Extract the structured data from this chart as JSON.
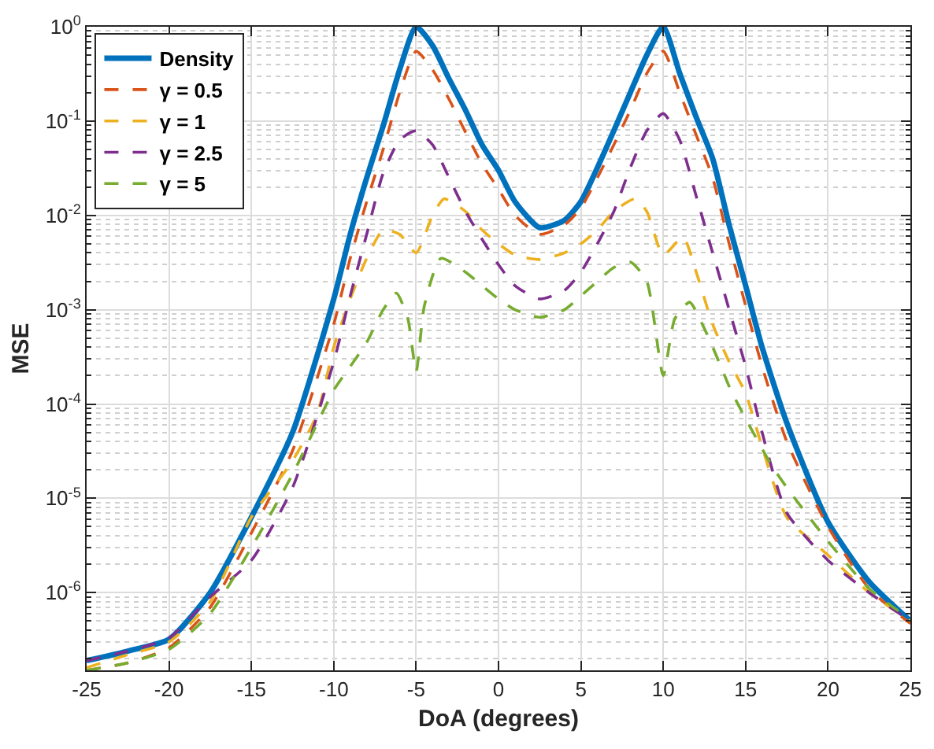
{
  "chart_data": {
    "type": "line",
    "xlabel": "DoA (degrees)",
    "ylabel": "MSE",
    "log": "y",
    "grid": true,
    "legend": "top left",
    "marker": "none",
    "xlim": [
      -25,
      25
    ],
    "xticks": [
      -25,
      -20,
      -15,
      -10,
      -5,
      0,
      5,
      10,
      15,
      20,
      25
    ],
    "ylim": [
      1.5e-07,
      1
    ],
    "yticks": [
      {
        "value": 1e-06,
        "label": "10$^{-6}$"
      },
      {
        "value": 1e-05,
        "label": "10$^{-5}$"
      },
      {
        "value": 0.0001,
        "label": "10$^{-4}$"
      },
      {
        "value": 0.001,
        "label": "10$^{-3}$"
      },
      {
        "value": 0.01,
        "label": "10$^{-2}$"
      },
      {
        "value": 0.1,
        "label": "10$^{-1}$"
      },
      {
        "value": 1,
        "label": "10$^{0}$"
      }
    ],
    "series": [
      {
        "name": "Density",
        "color": "#0072bd",
        "line_style": "solid",
        "x": [
          -25,
          -22.5,
          -20,
          -17.5,
          -15,
          -12.5,
          -10,
          -9,
          -8,
          -7,
          -6,
          -5,
          -4,
          -3,
          -2,
          -1,
          0,
          1,
          2.5,
          4,
          5,
          6,
          7,
          8,
          9,
          10,
          11,
          12,
          13,
          14,
          15,
          16,
          17.5,
          20,
          22.5,
          25
        ],
        "values": [
          1.9e-07,
          2.4e-07,
          3.2e-07,
          1e-06,
          6.3e-06,
          5e-05,
          0.0013,
          0.0063,
          0.025,
          0.089,
          0.35,
          1,
          0.63,
          0.28,
          0.13,
          0.056,
          0.03,
          0.014,
          0.0074,
          0.0089,
          0.014,
          0.032,
          0.079,
          0.2,
          0.5,
          1,
          0.32,
          0.11,
          0.04,
          0.0079,
          0.0018,
          0.0004,
          6.3e-05,
          5.6e-06,
          1.3e-06,
          5e-07
        ]
      },
      {
        "name": "γ = 0.5",
        "color": "#d95319",
        "line_style": "dashed",
        "x": [
          -25,
          -22.5,
          -20,
          -17.5,
          -15,
          -12.5,
          -10,
          -9,
          -8,
          -7,
          -6,
          -5,
          -4,
          -3,
          -2,
          -1,
          0,
          1,
          2.5,
          4,
          5,
          6,
          7,
          8,
          9,
          10,
          11,
          12,
          13,
          14,
          15,
          16,
          17.5,
          20,
          22.5,
          25
        ],
        "values": [
          1.5e-07,
          1.8e-07,
          2.6e-07,
          7e-07,
          4.3e-06,
          3.2e-05,
          0.0007,
          0.0035,
          0.014,
          0.05,
          0.2,
          0.55,
          0.35,
          0.17,
          0.076,
          0.035,
          0.019,
          0.01,
          0.0063,
          0.0079,
          0.012,
          0.025,
          0.056,
          0.13,
          0.32,
          0.55,
          0.2,
          0.071,
          0.025,
          0.005,
          0.0011,
          0.00025,
          4e-05,
          5e-06,
          1.1e-06,
          4.7e-07
        ]
      },
      {
        "name": "γ = 1",
        "color": "#edb120",
        "line_style": "dashed",
        "x": [
          -25,
          -22.5,
          -20,
          -17.5,
          -15,
          -12.5,
          -11,
          -10,
          -9,
          -8,
          -7,
          -6,
          -5,
          -4,
          -3.3,
          -2,
          -1,
          0,
          1,
          2.5,
          4,
          5,
          6,
          7,
          8.3,
          9,
          10,
          11.2,
          12,
          13,
          14,
          15,
          16,
          17.5,
          20,
          22.5,
          25
        ],
        "values": [
          1.6e-07,
          2.2e-07,
          3e-07,
          8e-07,
          6.3e-06,
          2.5e-05,
          7.9e-05,
          0.0004,
          0.0013,
          0.0035,
          0.007,
          0.0063,
          0.004,
          0.01,
          0.015,
          0.011,
          0.007,
          0.005,
          0.0038,
          0.0034,
          0.004,
          0.005,
          0.007,
          0.011,
          0.015,
          0.011,
          0.0038,
          0.0059,
          0.0025,
          0.0007,
          0.00028,
          0.00013,
          3.5e-05,
          6.3e-06,
          2.5e-06,
          1e-06,
          5e-07
        ]
      },
      {
        "name": "γ = 2.5",
        "color": "#7e2f8e",
        "line_style": "dashed",
        "x": [
          -25,
          -22.5,
          -20,
          -17.5,
          -15,
          -12.5,
          -10,
          -9,
          -8,
          -7,
          -6,
          -5,
          -4,
          -3,
          -2,
          -1,
          0,
          1,
          2.5,
          4,
          5,
          6,
          7,
          8,
          9,
          10,
          11,
          12,
          13,
          14,
          15,
          16,
          17.5,
          20,
          22.5,
          25
        ],
        "values": [
          1.9e-07,
          2.4e-07,
          3.3e-07,
          9e-07,
          2.2e-06,
          1.3e-05,
          0.00028,
          0.0014,
          0.0063,
          0.028,
          0.063,
          0.079,
          0.056,
          0.025,
          0.011,
          0.0056,
          0.003,
          0.0018,
          0.0013,
          0.0016,
          0.0025,
          0.005,
          0.011,
          0.032,
          0.079,
          0.12,
          0.063,
          0.016,
          0.004,
          0.001,
          0.00025,
          5e-05,
          7e-06,
          2.2e-06,
          1e-06,
          5e-07
        ]
      },
      {
        "name": "γ = 5",
        "color": "#77ac30",
        "line_style": "dashed",
        "x": [
          -25,
          -22.5,
          -20,
          -17.5,
          -15,
          -12.5,
          -10,
          -9,
          -8,
          -7,
          -6.2,
          -5.5,
          -5,
          -4.5,
          -3.5,
          -2,
          -1,
          0,
          1,
          2.5,
          4,
          5,
          6,
          7,
          8,
          9,
          10,
          10.7,
          11.6,
          12.5,
          13.5,
          14.1,
          15,
          16.6,
          17.5,
          20,
          22.5,
          25
        ],
        "values": [
          1.5e-07,
          1.8e-07,
          2.5e-07,
          6e-07,
          3e-06,
          1.8e-05,
          0.00014,
          0.00025,
          0.00045,
          0.001,
          0.0015,
          0.0008,
          0.00022,
          0.0011,
          0.0035,
          0.0025,
          0.0018,
          0.0013,
          0.001,
          0.00083,
          0.001,
          0.0014,
          0.002,
          0.0028,
          0.0032,
          0.002,
          0.0002,
          0.0008,
          0.0012,
          0.00063,
          0.00025,
          0.00014,
          7e-05,
          2.2e-05,
          1.3e-05,
          3.5e-06,
          1.1e-06,
          5.2e-07
        ]
      }
    ]
  }
}
